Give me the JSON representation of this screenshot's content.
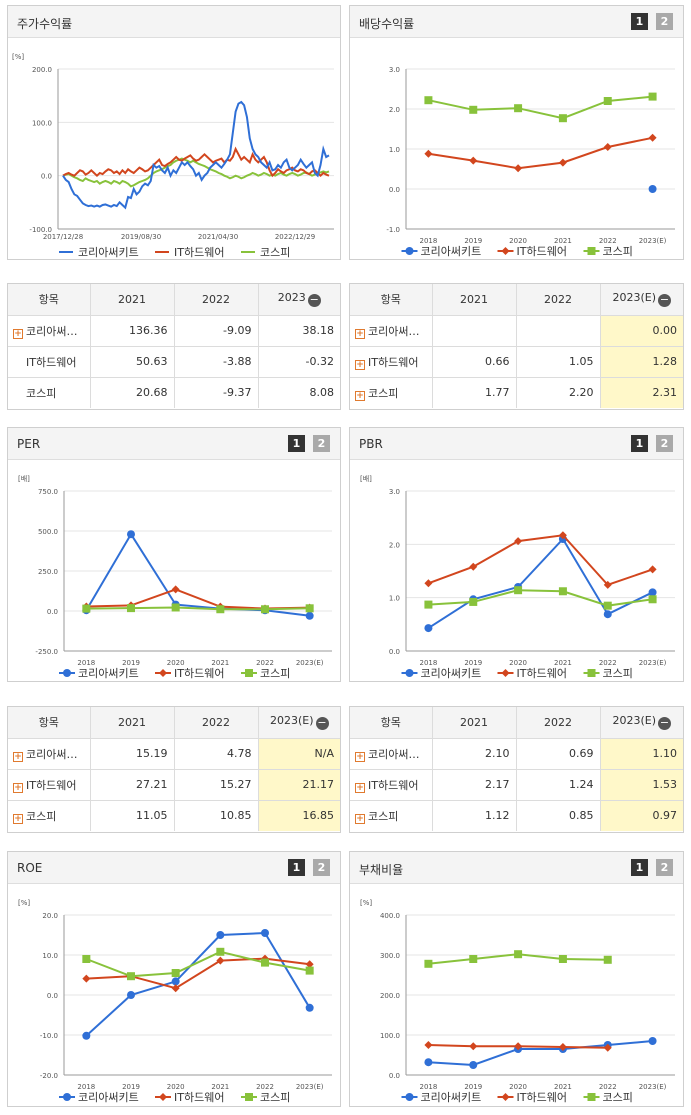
{
  "legend": [
    "코리아써키트",
    "IT하드웨어",
    "코스피"
  ],
  "colors": {
    "s1": "#2f6fd6",
    "s2": "#d2461e",
    "s3": "#88c23b"
  },
  "icons": {
    "expand": "plus-icon",
    "collapse": "minus-icon"
  },
  "panels": {
    "stock": {
      "title": "주가수익률",
      "unit": "[%]"
    },
    "dividend": {
      "title": "배당수익률",
      "unit": "",
      "pages": [
        "1",
        "2"
      ]
    },
    "per": {
      "title": "PER",
      "unit": "[배]",
      "pages": [
        "1",
        "2"
      ]
    },
    "pbr": {
      "title": "PBR",
      "unit": "[배]",
      "pages": [
        "1",
        "2"
      ]
    },
    "roe": {
      "title": "ROE",
      "unit": "[%]",
      "pages": [
        "1",
        "2"
      ]
    },
    "debt": {
      "title": "부채비율",
      "unit": "[%]",
      "pages": [
        "1",
        "2"
      ]
    }
  },
  "tables": {
    "stock": {
      "head": [
        "항목",
        "2021",
        "2022",
        "2023"
      ],
      "rows": [
        {
          "label": "코리아써…",
          "plus": true,
          "vals": [
            "136.36",
            "-9.09",
            "38.18"
          ]
        },
        {
          "label": "IT하드웨어",
          "plus": false,
          "vals": [
            "50.63",
            "-3.88",
            "-0.32"
          ]
        },
        {
          "label": "코스피",
          "plus": false,
          "vals": [
            "20.68",
            "-9.37",
            "8.08"
          ]
        }
      ]
    },
    "dividend": {
      "head": [
        "항목",
        "2021",
        "2022",
        "2023(E)"
      ],
      "rows": [
        {
          "label": "코리아써…",
          "plus": true,
          "vals": [
            "",
            "",
            "0.00"
          ]
        },
        {
          "label": "IT하드웨어",
          "plus": true,
          "vals": [
            "0.66",
            "1.05",
            "1.28"
          ]
        },
        {
          "label": "코스피",
          "plus": true,
          "vals": [
            "1.77",
            "2.20",
            "2.31"
          ]
        }
      ]
    },
    "per": {
      "head": [
        "항목",
        "2021",
        "2022",
        "2023(E)"
      ],
      "rows": [
        {
          "label": "코리아써…",
          "plus": true,
          "vals": [
            "15.19",
            "4.78",
            "N/A"
          ]
        },
        {
          "label": "IT하드웨어",
          "plus": true,
          "vals": [
            "27.21",
            "15.27",
            "21.17"
          ]
        },
        {
          "label": "코스피",
          "plus": true,
          "vals": [
            "11.05",
            "10.85",
            "16.85"
          ]
        }
      ]
    },
    "pbr": {
      "head": [
        "항목",
        "2021",
        "2022",
        "2023(E)"
      ],
      "rows": [
        {
          "label": "코리아써…",
          "plus": true,
          "vals": [
            "2.10",
            "0.69",
            "1.10"
          ]
        },
        {
          "label": "IT하드웨어",
          "plus": true,
          "vals": [
            "2.17",
            "1.24",
            "1.53"
          ]
        },
        {
          "label": "코스피",
          "plus": true,
          "vals": [
            "1.12",
            "0.85",
            "0.97"
          ]
        }
      ]
    }
  },
  "chart_data": [
    {
      "id": "stock",
      "type": "line",
      "ylim": [
        -100,
        200
      ],
      "yticks": [
        "200.0",
        "100.0",
        "0.0",
        "-100.0"
      ],
      "xticks": [
        "2017/12/28",
        "2019/08/30",
        "2021/04/30",
        "2022/12/29"
      ],
      "series": [
        {
          "name": "코리아써키트",
          "values": [
            0,
            -8,
            -12,
            -25,
            -35,
            -38,
            -45,
            -52,
            -55,
            -57,
            -56,
            -58,
            -56,
            -58,
            -55,
            -54,
            -56,
            -58,
            -55,
            -57,
            -50,
            -55,
            -60,
            -40,
            -42,
            -25,
            -35,
            -30,
            -20,
            -15,
            -18,
            -10,
            20,
            15,
            18,
            10,
            5,
            15,
            0,
            10,
            5,
            15,
            25,
            20,
            25,
            18,
            12,
            0,
            5,
            -8,
            0,
            5,
            15,
            20,
            25,
            20,
            15,
            22,
            30,
            40,
            80,
            120,
            135,
            138,
            132,
            110,
            70,
            50,
            40,
            35,
            25,
            20,
            15,
            25,
            10,
            12,
            20,
            15,
            25,
            30,
            15,
            10,
            15,
            20,
            30,
            22,
            15,
            20,
            25,
            5,
            0,
            20,
            50,
            35,
            38
          ]
        },
        {
          "name": "IT하드웨어",
          "values": [
            0,
            3,
            5,
            2,
            0,
            5,
            10,
            8,
            2,
            5,
            10,
            5,
            0,
            5,
            3,
            8,
            12,
            10,
            5,
            8,
            3,
            10,
            5,
            12,
            8,
            5,
            10,
            15,
            12,
            8,
            10,
            15,
            20,
            25,
            30,
            20,
            18,
            22,
            25,
            30,
            35,
            30,
            28,
            32,
            35,
            38,
            32,
            28,
            30,
            35,
            40,
            35,
            30,
            25,
            28,
            30,
            32,
            25,
            30,
            28,
            35,
            50,
            40,
            30,
            35,
            30,
            25,
            40,
            30,
            25,
            30,
            35,
            25,
            10,
            0,
            5,
            12,
            8,
            5,
            10,
            12,
            15,
            10,
            8,
            12,
            10,
            5,
            3,
            8,
            10,
            5,
            0,
            5,
            2,
            0
          ]
        },
        {
          "name": "코스피",
          "values": [
            0,
            2,
            3,
            0,
            -3,
            -5,
            -8,
            -10,
            -5,
            -8,
            -10,
            -12,
            -10,
            -15,
            -12,
            -10,
            -12,
            -15,
            -10,
            -12,
            -15,
            -10,
            -12,
            -15,
            -20,
            -18,
            -15,
            -12,
            -10,
            -8,
            -5,
            0,
            5,
            8,
            10,
            12,
            15,
            18,
            20,
            25,
            28,
            30,
            32,
            30,
            28,
            25,
            28,
            25,
            22,
            20,
            18,
            15,
            12,
            10,
            8,
            5,
            3,
            0,
            -2,
            -5,
            -3,
            0,
            -2,
            -5,
            -3,
            0,
            2,
            5,
            3,
            0,
            2,
            5,
            3,
            0,
            2,
            0,
            3,
            5,
            2,
            0,
            3,
            5,
            3,
            0,
            2,
            5,
            6,
            3,
            0,
            2,
            5,
            6,
            8,
            6,
            8
          ]
        }
      ]
    },
    {
      "id": "dividend",
      "type": "line",
      "ylim": [
        -1,
        3
      ],
      "yticks": [
        "3.0",
        "2.0",
        "1.0",
        "0.0",
        "-1.0"
      ],
      "categories": [
        "2018",
        "2019",
        "2020",
        "2021",
        "2022",
        "2023(E)"
      ],
      "series": [
        {
          "name": "코리아써키트",
          "values": [
            null,
            null,
            null,
            null,
            null,
            0.0
          ]
        },
        {
          "name": "IT하드웨어",
          "values": [
            0.88,
            0.71,
            0.52,
            0.66,
            1.05,
            1.28
          ]
        },
        {
          "name": "코스피",
          "values": [
            2.22,
            1.98,
            2.02,
            1.77,
            2.2,
            2.31
          ]
        }
      ]
    },
    {
      "id": "per",
      "type": "line",
      "ylim": [
        -250,
        750
      ],
      "yticks": [
        "750.0",
        "500.0",
        "250.0",
        "0.0",
        "-250.0"
      ],
      "categories": [
        "2018",
        "2019",
        "2020",
        "2021",
        "2022",
        "2023(E)"
      ],
      "series": [
        {
          "name": "코리아써키트",
          "values": [
            5,
            480,
            40,
            15.19,
            4.78,
            -30
          ]
        },
        {
          "name": "IT하드웨어",
          "values": [
            28,
            35,
            135,
            27.21,
            15.27,
            21.17
          ]
        },
        {
          "name": "코스피",
          "values": [
            15,
            18,
            22,
            11.05,
            10.85,
            16.85
          ]
        }
      ]
    },
    {
      "id": "pbr",
      "type": "line",
      "ylim": [
        0,
        3
      ],
      "yticks": [
        "3.0",
        "2.0",
        "1.0",
        "0.0"
      ],
      "categories": [
        "2018",
        "2019",
        "2020",
        "2021",
        "2022",
        "2023(E)"
      ],
      "series": [
        {
          "name": "코리아써키트",
          "values": [
            0.43,
            0.97,
            1.2,
            2.1,
            0.69,
            1.1
          ]
        },
        {
          "name": "IT하드웨어",
          "values": [
            1.27,
            1.58,
            2.06,
            2.17,
            1.24,
            1.53
          ]
        },
        {
          "name": "코스피",
          "values": [
            0.87,
            0.92,
            1.14,
            1.12,
            0.85,
            0.97
          ]
        }
      ]
    },
    {
      "id": "roe",
      "type": "line",
      "ylim": [
        -20,
        20
      ],
      "yticks": [
        "20.0",
        "10.0",
        "0.0",
        "-10.0",
        "-20.0"
      ],
      "categories": [
        "2018",
        "2019",
        "2020",
        "2021",
        "2022",
        "2023(E)"
      ],
      "series": [
        {
          "name": "코리아써키트",
          "values": [
            -10.2,
            0,
            3.4,
            15,
            15.5,
            -3.2
          ]
        },
        {
          "name": "IT하드웨어",
          "values": [
            4.1,
            4.7,
            1.7,
            8.6,
            9.1,
            7.7
          ]
        },
        {
          "name": "코스피",
          "values": [
            9,
            4.7,
            5.5,
            10.8,
            8.1,
            6.1
          ]
        }
      ]
    },
    {
      "id": "debt",
      "type": "line",
      "ylim": [
        0,
        400
      ],
      "yticks": [
        "400.0",
        "300.0",
        "200.0",
        "100.0",
        "0.0"
      ],
      "categories": [
        "2018",
        "2019",
        "2020",
        "2021",
        "2022",
        "2023(E)"
      ],
      "series": [
        {
          "name": "코리아써키트",
          "values": [
            32,
            25,
            65,
            65,
            75,
            85
          ]
        },
        {
          "name": "IT하드웨어",
          "values": [
            75,
            72,
            72,
            70,
            68,
            null
          ]
        },
        {
          "name": "코스피",
          "values": [
            278,
            290,
            302,
            290,
            288,
            null
          ]
        }
      ]
    }
  ]
}
